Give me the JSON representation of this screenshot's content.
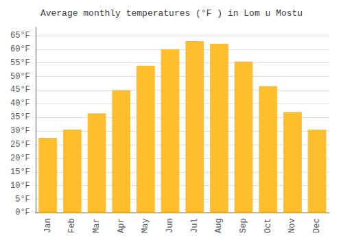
{
  "chart_data": {
    "type": "bar",
    "title": "Average monthly temperatures (°F ) in Lom u Mostu",
    "categories": [
      "Jan",
      "Feb",
      "Mar",
      "Apr",
      "May",
      "Jun",
      "Jul",
      "Aug",
      "Sep",
      "Oct",
      "Nov",
      "Dec"
    ],
    "values": [
      27.5,
      30.5,
      36.5,
      45.0,
      54.0,
      60.0,
      63.0,
      62.0,
      55.5,
      46.5,
      37.0,
      30.5
    ],
    "color": "#FFBE2D",
    "ylim": [
      0,
      68
    ],
    "yticks": [
      {
        "value": 0,
        "label": "0°F"
      },
      {
        "value": 5,
        "label": "5°F"
      },
      {
        "value": 10,
        "label": "10°F"
      },
      {
        "value": 15,
        "label": "15°F"
      },
      {
        "value": 20,
        "label": "20°F"
      },
      {
        "value": 25,
        "label": "25°F"
      },
      {
        "value": 30,
        "label": "30°F"
      },
      {
        "value": 35,
        "label": "35°F"
      },
      {
        "value": 40,
        "label": "40°F"
      },
      {
        "value": 45,
        "label": "45°F"
      },
      {
        "value": 50,
        "label": "50°F"
      },
      {
        "value": 55,
        "label": "55°F"
      },
      {
        "value": 60,
        "label": "60°F"
      },
      {
        "value": 65,
        "label": "65°F"
      }
    ],
    "grid": true
  }
}
